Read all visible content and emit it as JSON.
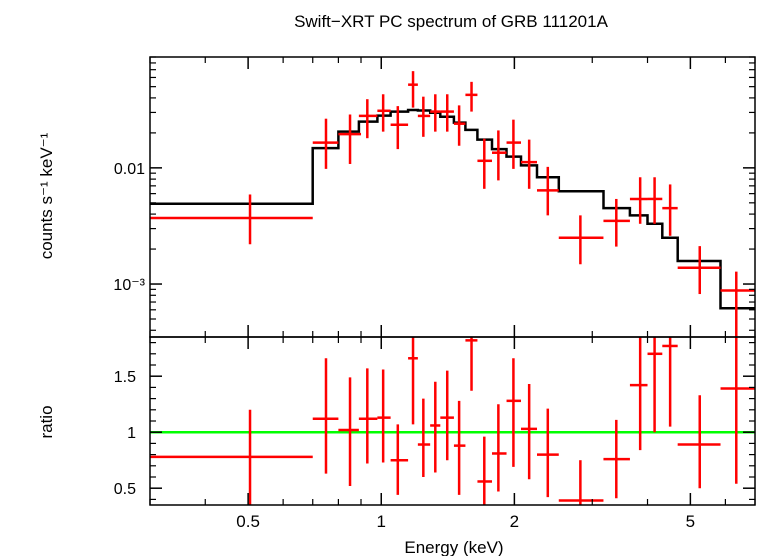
{
  "chart_data": [
    {
      "type": "scatter",
      "title": "Swift−XRT PC spectrum of GRB 111201A",
      "ylabel": "counts s⁻¹ keV⁻¹",
      "xscale": "log",
      "yscale": "log",
      "xlim": [
        0.3,
        7.0
      ],
      "ylim": [
        0.00035,
        0.09
      ],
      "yticks": [
        {
          "value": 0.01,
          "label": "0.01"
        },
        {
          "value": 0.001,
          "label": "10⁻³"
        }
      ],
      "series": [
        {
          "color": "#ff0000",
          "style": "crosses",
          "points": [
            {
              "x": 0.505,
              "xlo": 0.3,
              "xhi": 0.7,
              "y": 0.0037,
              "ylo": 0.0022,
              "yhi": 0.0059
            },
            {
              "x": 0.75,
              "xlo": 0.7,
              "xhi": 0.8,
              "y": 0.0165,
              "ylo": 0.0098,
              "yhi": 0.0265
            },
            {
              "x": 0.85,
              "xlo": 0.8,
              "xhi": 0.9,
              "y": 0.0195,
              "ylo": 0.0108,
              "yhi": 0.0288
            },
            {
              "x": 0.93,
              "xlo": 0.89,
              "xhi": 0.98,
              "y": 0.028,
              "ylo": 0.018,
              "yhi": 0.039
            },
            {
              "x": 1.01,
              "xlo": 0.98,
              "xhi": 1.05,
              "y": 0.031,
              "ylo": 0.0205,
              "yhi": 0.043
            },
            {
              "x": 1.09,
              "xlo": 1.05,
              "xhi": 1.15,
              "y": 0.0235,
              "ylo": 0.0145,
              "yhi": 0.034
            },
            {
              "x": 1.18,
              "xlo": 1.15,
              "xhi": 1.21,
              "y": 0.052,
              "ylo": 0.033,
              "yhi": 0.068
            },
            {
              "x": 1.245,
              "xlo": 1.21,
              "xhi": 1.29,
              "y": 0.028,
              "ylo": 0.0185,
              "yhi": 0.041
            },
            {
              "x": 1.325,
              "xlo": 1.29,
              "xhi": 1.36,
              "y": 0.0305,
              "ylo": 0.0205,
              "yhi": 0.043
            },
            {
              "x": 1.41,
              "xlo": 1.36,
              "xhi": 1.46,
              "y": 0.0305,
              "ylo": 0.0205,
              "yhi": 0.043
            },
            {
              "x": 1.5,
              "xlo": 1.46,
              "xhi": 1.55,
              "y": 0.024,
              "ylo": 0.0155,
              "yhi": 0.0345
            },
            {
              "x": 1.6,
              "xlo": 1.55,
              "xhi": 1.65,
              "y": 0.0425,
              "ylo": 0.0305,
              "yhi": 0.055
            },
            {
              "x": 1.71,
              "xlo": 1.65,
              "xhi": 1.78,
              "y": 0.0115,
              "ylo": 0.0066,
              "yhi": 0.0178
            },
            {
              "x": 1.84,
              "xlo": 1.78,
              "xhi": 1.92,
              "y": 0.0135,
              "ylo": 0.0078,
              "yhi": 0.021
            },
            {
              "x": 1.99,
              "xlo": 1.92,
              "xhi": 2.07,
              "y": 0.0165,
              "ylo": 0.0098,
              "yhi": 0.026
            },
            {
              "x": 2.16,
              "xlo": 2.07,
              "xhi": 2.25,
              "y": 0.0112,
              "ylo": 0.0066,
              "yhi": 0.0175
            },
            {
              "x": 2.38,
              "xlo": 2.25,
              "xhi": 2.52,
              "y": 0.0064,
              "ylo": 0.0039,
              "yhi": 0.0102
            },
            {
              "x": 2.82,
              "xlo": 2.52,
              "xhi": 3.18,
              "y": 0.0025,
              "ylo": 0.00148,
              "yhi": 0.0039
            },
            {
              "x": 3.4,
              "xlo": 3.18,
              "xhi": 3.65,
              "y": 0.0035,
              "ylo": 0.0021,
              "yhi": 0.0054
            },
            {
              "x": 3.85,
              "xlo": 3.65,
              "xhi": 4.0,
              "y": 0.0054,
              "ylo": 0.0033,
              "yhi": 0.0083
            },
            {
              "x": 4.15,
              "xlo": 4.0,
              "xhi": 4.32,
              "y": 0.0054,
              "ylo": 0.0033,
              "yhi": 0.0083
            },
            {
              "x": 4.5,
              "xlo": 4.32,
              "xhi": 4.68,
              "y": 0.0045,
              "ylo": 0.0026,
              "yhi": 0.0072
            },
            {
              "x": 5.25,
              "xlo": 4.68,
              "xhi": 5.85,
              "y": 0.00138,
              "ylo": 0.00082,
              "yhi": 0.00212
            },
            {
              "x": 6.35,
              "xlo": 5.85,
              "xhi": 7.0,
              "y": 0.00088,
              "ylo": 0.00035,
              "yhi": 0.00128
            }
          ]
        },
        {
          "color": "#000000",
          "style": "step",
          "edges": [
            0.3,
            0.7,
            0.8,
            0.89,
            0.98,
            1.05,
            1.15,
            1.21,
            1.29,
            1.36,
            1.46,
            1.55,
            1.65,
            1.78,
            1.92,
            2.07,
            2.25,
            2.52,
            3.18,
            3.65,
            4.0,
            4.32,
            4.68,
            5.85,
            7.0
          ],
          "values": [
            0.0049,
            0.0148,
            0.0205,
            0.025,
            0.0282,
            0.0305,
            0.0315,
            0.0312,
            0.0298,
            0.0275,
            0.0245,
            0.0212,
            0.0175,
            0.0145,
            0.0125,
            0.0105,
            0.0083,
            0.0063,
            0.0045,
            0.0039,
            0.0033,
            0.0025,
            0.00158,
            0.00062
          ]
        }
      ]
    },
    {
      "type": "scatter",
      "xlabel": "Energy (keV)",
      "ylabel": "ratio",
      "xscale": "log",
      "xlim": [
        0.3,
        7.0
      ],
      "ylim": [
        0.35,
        1.85
      ],
      "yticks": [
        {
          "value": 0.5,
          "label": "0.5"
        },
        {
          "value": 1,
          "label": "1"
        },
        {
          "value": 1.5,
          "label": "1.5"
        }
      ],
      "xticks": [
        {
          "value": 0.5,
          "label": "0.5"
        },
        {
          "value": 1,
          "label": "1"
        },
        {
          "value": 2,
          "label": "2"
        },
        {
          "value": 5,
          "label": "5"
        }
      ],
      "reference_line": {
        "y": 1,
        "color": "#00ff00"
      },
      "series": [
        {
          "color": "#ff0000",
          "style": "crosses",
          "points": [
            {
              "x": 0.505,
              "xlo": 0.3,
              "xhi": 0.7,
              "y": 0.78,
              "ylo": 0.35,
              "yhi": 1.2
            },
            {
              "x": 0.75,
              "xlo": 0.7,
              "xhi": 0.8,
              "y": 1.12,
              "ylo": 0.63,
              "yhi": 1.66
            },
            {
              "x": 0.85,
              "xlo": 0.8,
              "xhi": 0.89,
              "y": 1.02,
              "ylo": 0.52,
              "yhi": 1.49
            },
            {
              "x": 0.93,
              "xlo": 0.89,
              "xhi": 0.98,
              "y": 1.12,
              "ylo": 0.72,
              "yhi": 1.57
            },
            {
              "x": 1.01,
              "xlo": 0.98,
              "xhi": 1.05,
              "y": 1.13,
              "ylo": 0.73,
              "yhi": 1.56
            },
            {
              "x": 1.09,
              "xlo": 1.05,
              "xhi": 1.15,
              "y": 0.75,
              "ylo": 0.44,
              "yhi": 1.07
            },
            {
              "x": 1.18,
              "xlo": 1.15,
              "xhi": 1.21,
              "y": 1.66,
              "ylo": 1.07,
              "yhi": 1.85
            },
            {
              "x": 1.245,
              "xlo": 1.21,
              "xhi": 1.29,
              "y": 0.89,
              "ylo": 0.6,
              "yhi": 1.3
            },
            {
              "x": 1.325,
              "xlo": 1.29,
              "xhi": 1.36,
              "y": 1.06,
              "ylo": 0.64,
              "yhi": 1.45
            },
            {
              "x": 1.41,
              "xlo": 1.36,
              "xhi": 1.46,
              "y": 1.13,
              "ylo": 0.75,
              "yhi": 1.55
            },
            {
              "x": 1.5,
              "xlo": 1.46,
              "xhi": 1.55,
              "y": 0.88,
              "ylo": 0.44,
              "yhi": 1.28
            },
            {
              "x": 1.6,
              "xlo": 1.55,
              "xhi": 1.65,
              "y": 1.82,
              "ylo": 1.37,
              "yhi": 1.85
            },
            {
              "x": 1.71,
              "xlo": 1.65,
              "xhi": 1.78,
              "y": 0.56,
              "ylo": 0.35,
              "yhi": 0.96
            },
            {
              "x": 1.84,
              "xlo": 1.78,
              "xhi": 1.92,
              "y": 0.81,
              "ylo": 0.47,
              "yhi": 1.25
            },
            {
              "x": 1.99,
              "xlo": 1.92,
              "xhi": 2.07,
              "y": 1.28,
              "ylo": 0.69,
              "yhi": 1.66
            },
            {
              "x": 2.16,
              "xlo": 2.07,
              "xhi": 2.25,
              "y": 1.03,
              "ylo": 0.58,
              "yhi": 1.43
            },
            {
              "x": 2.38,
              "xlo": 2.25,
              "xhi": 2.52,
              "y": 0.8,
              "ylo": 0.42,
              "yhi": 1.21
            },
            {
              "x": 2.82,
              "xlo": 2.52,
              "xhi": 3.18,
              "y": 0.39,
              "ylo": 0.35,
              "yhi": 0.75
            },
            {
              "x": 3.4,
              "xlo": 3.18,
              "xhi": 3.65,
              "y": 0.76,
              "ylo": 0.41,
              "yhi": 1.11
            },
            {
              "x": 3.85,
              "xlo": 3.65,
              "xhi": 4.0,
              "y": 1.42,
              "ylo": 0.84,
              "yhi": 1.85
            },
            {
              "x": 4.15,
              "xlo": 4.0,
              "xhi": 4.32,
              "y": 1.7,
              "ylo": 1.0,
              "yhi": 1.85
            },
            {
              "x": 4.5,
              "xlo": 4.32,
              "xhi": 4.68,
              "y": 1.77,
              "ylo": 1.05,
              "yhi": 1.85
            },
            {
              "x": 5.25,
              "xlo": 4.68,
              "xhi": 5.85,
              "y": 0.89,
              "ylo": 0.5,
              "yhi": 1.33
            },
            {
              "x": 6.35,
              "xlo": 5.85,
              "xhi": 7.0,
              "y": 1.39,
              "ylo": 0.54,
              "yhi": 1.85
            }
          ]
        }
      ]
    }
  ]
}
